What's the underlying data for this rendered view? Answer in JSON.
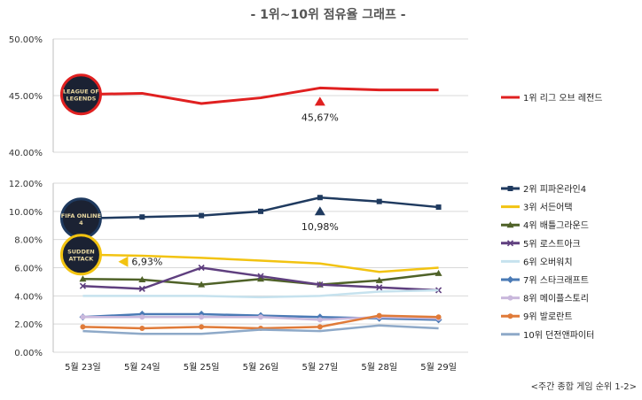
{
  "title": "- 1위~10위 점유율 그래프 -",
  "source": "<주간 종합 게임 순위 1-2>",
  "colors": {
    "grid": "#d9d9d9",
    "axis_text": "#333333"
  },
  "chart_data": [
    {
      "type": "line",
      "categories": [
        "5월 23일",
        "5월 24일",
        "5월 25일",
        "5월 26일",
        "5월 27일",
        "5월 28일",
        "5월 29일"
      ],
      "ylim": [
        40,
        50
      ],
      "yticks": [
        "40.00%",
        "45.00%",
        "50.00%"
      ],
      "grid": true,
      "legend": "right",
      "series": [
        {
          "name": "1위 리그 오브 레전드",
          "color": "#e02020",
          "marker": "none",
          "width": 3,
          "values": [
            45.1,
            45.2,
            44.3,
            44.8,
            45.67,
            45.5,
            45.5
          ]
        }
      ],
      "annotations": [
        {
          "text": "45,67%",
          "category": "5월 27일",
          "value": 45.67,
          "marker": "triangle-up",
          "color": "#e02020"
        }
      ],
      "logos": [
        {
          "text": "LEAGUE OF LEGENDS",
          "ring": "#e02020",
          "category": "5월 23일",
          "value": 45.1
        }
      ]
    },
    {
      "type": "line",
      "categories": [
        "5월 23일",
        "5월 24일",
        "5월 25일",
        "5월 26일",
        "5월 27일",
        "5월 28일",
        "5월 29일"
      ],
      "ylim": [
        0,
        12
      ],
      "yticks": [
        "0.00%",
        "2.00%",
        "4.00%",
        "6.00%",
        "8.00%",
        "10.00%",
        "12.00%"
      ],
      "grid": true,
      "legend": "right",
      "series": [
        {
          "name": "2위 피파온라인4",
          "color": "#1f3a5f",
          "marker": "square",
          "width": 2.5,
          "values": [
            9.5,
            9.6,
            9.7,
            10.0,
            10.98,
            10.7,
            10.3
          ]
        },
        {
          "name": "3위 서든어택",
          "color": "#f2c311",
          "marker": "none",
          "width": 2.5,
          "values": [
            6.93,
            6.85,
            6.7,
            6.5,
            6.3,
            5.7,
            6.0
          ]
        },
        {
          "name": "4위 배틀그라운드",
          "color": "#4f6228",
          "marker": "triangle",
          "width": 2.5,
          "values": [
            5.2,
            5.15,
            4.8,
            5.2,
            4.8,
            5.1,
            5.6
          ]
        },
        {
          "name": "5위 로스트아크",
          "color": "#5f3f7f",
          "marker": "cross",
          "width": 2.5,
          "values": [
            4.7,
            4.5,
            6.0,
            5.4,
            4.8,
            4.6,
            4.4
          ]
        },
        {
          "name": "6위 오버워치",
          "color": "#c6e2ee",
          "marker": "none",
          "width": 2.5,
          "values": [
            4.0,
            4.0,
            4.0,
            3.9,
            4.0,
            4.3,
            4.4
          ]
        },
        {
          "name": "7위 스타크래프트",
          "color": "#4a7ab5",
          "marker": "diamond",
          "width": 2.5,
          "values": [
            2.5,
            2.7,
            2.7,
            2.6,
            2.5,
            2.4,
            2.3
          ]
        },
        {
          "name": "8위 메이플스토리",
          "color": "#c9b8dc",
          "marker": "circle",
          "width": 2.5,
          "values": [
            2.5,
            2.5,
            2.5,
            2.5,
            2.3,
            2.5,
            2.4
          ]
        },
        {
          "name": "9위 발로란트",
          "color": "#e07b39",
          "marker": "circle",
          "width": 2.5,
          "values": [
            1.8,
            1.7,
            1.8,
            1.7,
            1.8,
            2.6,
            2.5
          ]
        },
        {
          "name": "10위 던전앤파이터",
          "color": "#8ea9c8",
          "marker": "none",
          "width": 2.5,
          "values": [
            1.5,
            1.3,
            1.3,
            1.6,
            1.5,
            1.9,
            1.7
          ]
        }
      ],
      "annotations": [
        {
          "text": "10,98%",
          "category": "5월 27일",
          "value": 10.98,
          "marker": "triangle-up",
          "color": "#1f3a5f"
        },
        {
          "text": "6,93%",
          "category": "5월 23일",
          "value": 6.93,
          "marker": "triangle-left",
          "color": "#f2c311"
        }
      ],
      "logos": [
        {
          "text": "FIFA ONLINE 4",
          "ring": "#1f3a5f",
          "category": "5월 23일",
          "value": 9.5
        },
        {
          "text": "SUDDEN ATTACK",
          "ring": "#f2c311",
          "category": "5월 23일",
          "value": 6.93
        }
      ]
    }
  ]
}
